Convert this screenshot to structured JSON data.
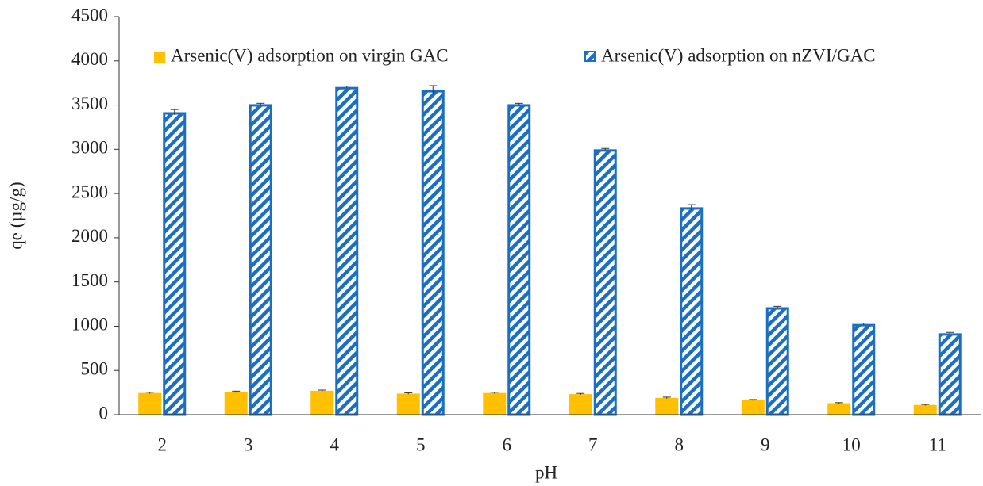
{
  "chart_data": {
    "type": "bar",
    "xlabel": "pH",
    "ylabel": "qe (µg/g)",
    "categories": [
      "2",
      "3",
      "4",
      "5",
      "6",
      "7",
      "8",
      "9",
      "10",
      "11"
    ],
    "series": [
      {
        "name": "Arsenic(V) adsorption on virgin GAC",
        "color": "#ffc000",
        "hatch": false,
        "values": [
          245,
          258,
          270,
          238,
          245,
          232,
          190,
          165,
          130,
          110
        ],
        "errors": [
          8,
          8,
          8,
          8,
          8,
          8,
          8,
          6,
          6,
          6
        ]
      },
      {
        "name": "Arsenic(V) adsorption on nZVI/GAC",
        "color": "#1b6fc2",
        "hatch": true,
        "values": [
          3420,
          3510,
          3705,
          3670,
          3510,
          3000,
          2345,
          1215,
          1025,
          920
        ],
        "errors": [
          30,
          10,
          10,
          50,
          10,
          10,
          30,
          10,
          10,
          10
        ]
      }
    ],
    "ylim": [
      0,
      4500
    ],
    "yticks": [
      0,
      500,
      1000,
      1500,
      2000,
      2500,
      3000,
      3500,
      4000,
      4500
    ],
    "legend": "top",
    "grid": false
  }
}
